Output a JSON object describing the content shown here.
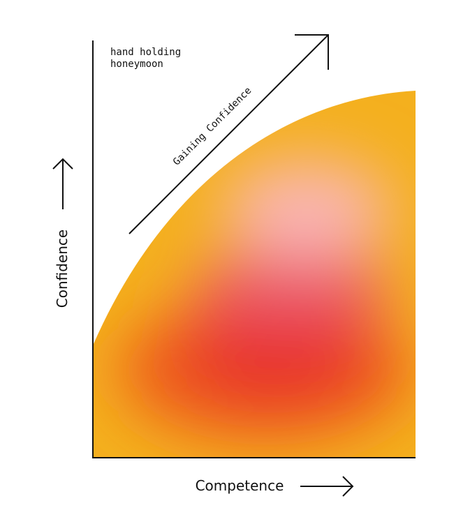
{
  "annotation": {
    "lines": [
      "hand holding",
      "honeymoon"
    ]
  },
  "arrow_label": "Gaining Confidence",
  "y_axis_label": "Confidence",
  "x_axis_label": "Competence"
}
